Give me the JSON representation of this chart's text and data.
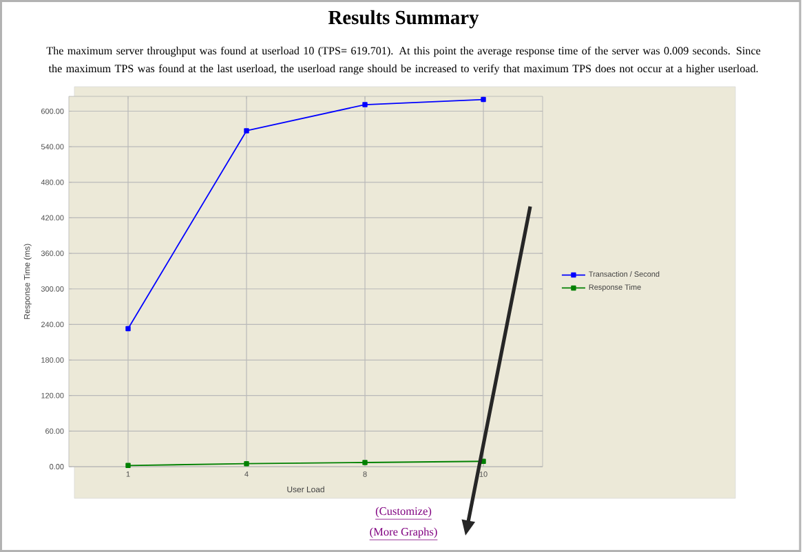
{
  "chart_data": {
    "type": "line",
    "title": "Results Summary",
    "subtitle": "The maximum server throughput was found at userload 10 (TPS= 619.701). At this point the average response time of the server was 0.009 seconds. Since the maximum TPS was found at the last userload, the userload range should be increased to verify that maximum TPS does not occur at a higher userload.",
    "xlabel": "User Load",
    "ylabel": "Response Time (ms)",
    "categories": [
      "1",
      "4",
      "8",
      "10"
    ],
    "series": [
      {
        "name": "Transaction / Second",
        "color": "#0000ff",
        "values": [
          233,
          567,
          611,
          619.701
        ]
      },
      {
        "name": "Response Time",
        "color": "#008000",
        "values": [
          2,
          5,
          7,
          9
        ]
      }
    ],
    "ylim": [
      0,
      625
    ],
    "yticks": [
      {
        "value": 0,
        "label": "0.00"
      },
      {
        "value": 60,
        "label": "60.00"
      },
      {
        "value": 120,
        "label": "120.00"
      },
      {
        "value": 180,
        "label": "180.00"
      },
      {
        "value": 240,
        "label": "240.00"
      },
      {
        "value": 300,
        "label": "300.00"
      },
      {
        "value": 360,
        "label": "360.00"
      },
      {
        "value": 420,
        "label": "420.00"
      },
      {
        "value": 480,
        "label": "480.00"
      },
      {
        "value": 540,
        "label": "540.00"
      },
      {
        "value": 600,
        "label": "600.00"
      }
    ],
    "grid": true,
    "legend": "right",
    "marker": "square",
    "annotations": [
      "(Customize)",
      "(More Graphs)"
    ]
  }
}
